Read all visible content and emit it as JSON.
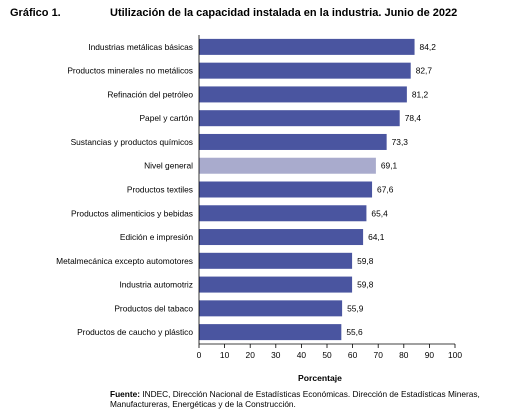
{
  "header": {
    "number": "Gráfico 1.",
    "title": "Utilización de la capacidad instalada en la industria. Junio de 2022"
  },
  "source": {
    "label": "Fuente:",
    "text": " INDEC, Dirección Nacional de Estadísticas Económicas. Dirección de Estadísticas Mineras, Manufactureras, Energéticas y de la Construcción."
  },
  "colors": {
    "bar": "#4a55a0",
    "highlight": "#a9abcd"
  },
  "chart_data": {
    "type": "bar",
    "orientation": "horizontal",
    "title": "Utilización de la capacidad instalada en la industria. Junio de 2022",
    "xlabel": "Porcentaje",
    "ylabel": "",
    "xlim": [
      0,
      100
    ],
    "ticks": [
      0,
      10,
      20,
      30,
      40,
      50,
      60,
      70,
      80,
      90,
      100
    ],
    "grid": false,
    "highlighted_category": "Nivel general",
    "categories": [
      "Industrias metálicas básicas",
      "Productos minerales no metálicos",
      "Refinación del petróleo",
      "Papel y cartón",
      "Sustancias y productos químicos",
      "Nivel general",
      "Productos textiles",
      "Productos alimenticios y bebidas",
      "Edición e impresión",
      "Metalmecánica excepto automotores",
      "Industria automotriz",
      "Productos del tabaco",
      "Productos de caucho y plástico"
    ],
    "values": [
      84.2,
      82.7,
      81.2,
      78.4,
      73.3,
      69.1,
      67.6,
      65.4,
      64.1,
      59.8,
      59.8,
      55.9,
      55.6
    ],
    "value_labels": [
      "84,2",
      "82,7",
      "81,2",
      "78,4",
      "73,3",
      "69,1",
      "67,6",
      "65,4",
      "64,1",
      "59,8",
      "59,8",
      "55,9",
      "55,6"
    ]
  }
}
